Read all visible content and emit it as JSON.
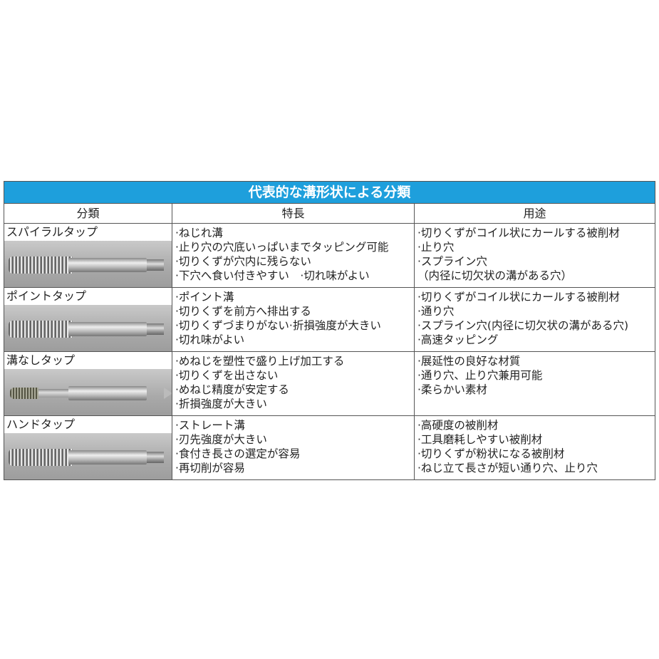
{
  "title": "代表的な溝形状による分類",
  "headers": [
    "分類",
    "特長",
    "用途"
  ],
  "rows": [
    {
      "name": "スパイラルタップ",
      "image": "spiral-tap-photo",
      "features": [
        "·ねじれ溝",
        "·止り穴の穴底いっぱいまでタッピング可能",
        "·切りくずが穴内に残らない",
        "·下穴へ食い付きやすい　·切れ味がよい"
      ],
      "uses": [
        "·切りくずがコイル状にカールする被削材",
        "·止り穴",
        "·スプライン穴",
        "（内径に切欠状の溝がある穴）"
      ]
    },
    {
      "name": "ポイントタップ",
      "image": "point-tap-photo",
      "features": [
        "·ポイント溝",
        "·切りくずを前方へ排出する",
        "·切りくずづまりがない·折損強度が大きい",
        "·切れ味がよい"
      ],
      "uses": [
        "·切りくずがコイル状にカールする被削材",
        "·通り穴",
        "·スプライン穴(内径に切欠状の溝がある穴)",
        "·高速タッピング"
      ]
    },
    {
      "name": "溝なしタップ",
      "image": "fluteless-tap-photo",
      "features": [
        "·めねじを塑性で盛り上げ加工する",
        "·切りくずを出さない",
        "·めねじ精度が安定する",
        "·折損強度が大きい"
      ],
      "uses": [
        "·展延性の良好な材質",
        "·通り穴、止り穴兼用可能",
        "·柔らかい素材"
      ]
    },
    {
      "name": "ハンドタップ",
      "image": "hand-tap-photo",
      "features": [
        "·ストレート溝",
        "·刃先強度が大きい",
        "·食付き長さの選定が容易",
        "·再切削が容易"
      ],
      "uses": [
        "·高硬度の被削材",
        "·工具磨耗しやすい被削材",
        "·切りくずが粉状になる被削材",
        "·ねじ立て長さが短い通り穴、止り穴"
      ]
    }
  ],
  "colors": {
    "title_bg": "#1e9fdc",
    "title_text": "#ffffff"
  }
}
